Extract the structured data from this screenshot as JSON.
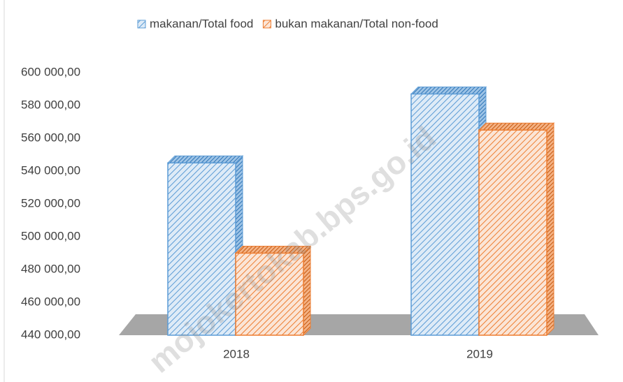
{
  "chart_data": {
    "type": "bar3d",
    "categories": [
      "2018",
      "2019"
    ],
    "series": [
      {
        "name": "makanan/Total food",
        "color": "#5b9bd5",
        "values": [
          545000,
          587000
        ]
      },
      {
        "name": "bukan makanan/Total non-food",
        "color": "#ed7d31",
        "values": [
          490000,
          565000
        ]
      }
    ],
    "ylim": [
      440000,
      600000
    ],
    "yticks": [
      {
        "value": 440000,
        "label": "440 000,00"
      },
      {
        "value": 460000,
        "label": "460 000,00"
      },
      {
        "value": 480000,
        "label": "480 000,00"
      },
      {
        "value": 500000,
        "label": "500 000,00"
      },
      {
        "value": 520000,
        "label": "520 000,00"
      },
      {
        "value": 540000,
        "label": "540 000,00"
      },
      {
        "value": 560000,
        "label": "560 000,00"
      },
      {
        "value": 580000,
        "label": "580 000,00"
      },
      {
        "value": 600000,
        "label": "600 000,00"
      }
    ],
    "legend": "top",
    "watermark": "mojokertokab.bps.go.id"
  }
}
